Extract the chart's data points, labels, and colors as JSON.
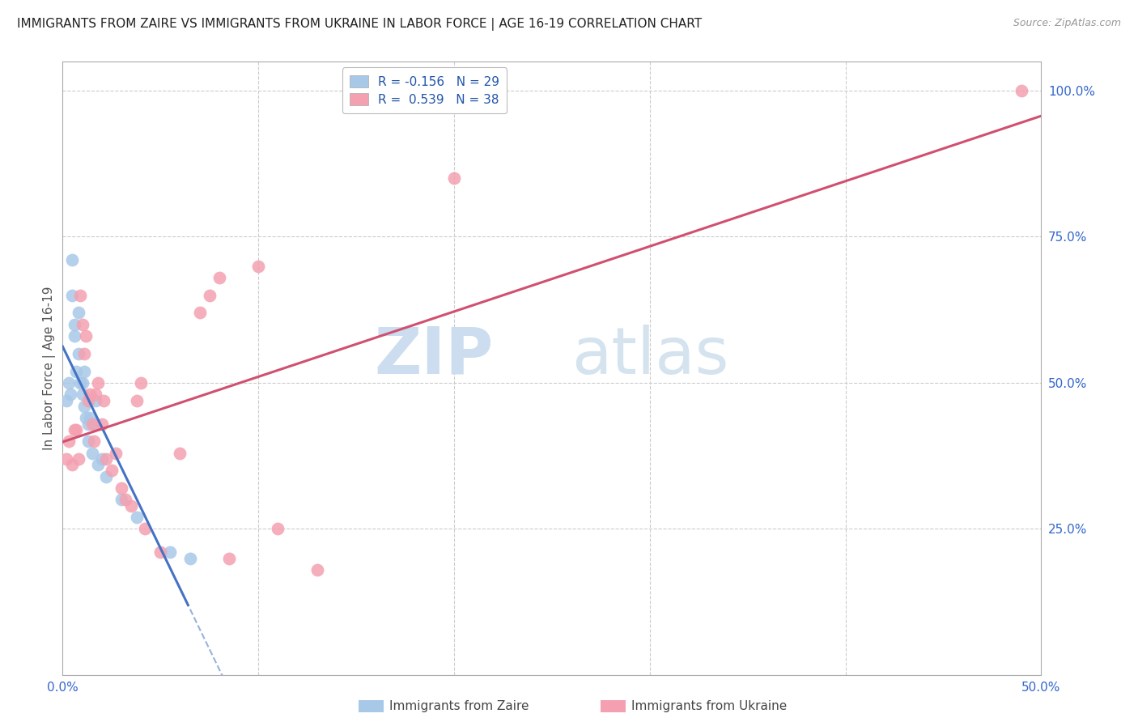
{
  "title": "IMMIGRANTS FROM ZAIRE VS IMMIGRANTS FROM UKRAINE IN LABOR FORCE | AGE 16-19 CORRELATION CHART",
  "source_text": "Source: ZipAtlas.com",
  "ylabel": "In Labor Force | Age 16-19",
  "xlim": [
    0.0,
    0.5
  ],
  "ylim": [
    0.0,
    1.05
  ],
  "xtick_positions": [
    0.0,
    0.1,
    0.2,
    0.3,
    0.4,
    0.5
  ],
  "xticklabels": [
    "0.0%",
    "",
    "",
    "",
    "",
    "50.0%"
  ],
  "ytick_positions": [
    0.0,
    0.25,
    0.5,
    0.75,
    1.0
  ],
  "yticklabels_right": [
    "",
    "25.0%",
    "50.0%",
    "75.0%",
    "100.0%"
  ],
  "zaire_x": [
    0.002,
    0.003,
    0.004,
    0.005,
    0.005,
    0.006,
    0.006,
    0.007,
    0.008,
    0.008,
    0.009,
    0.01,
    0.01,
    0.011,
    0.011,
    0.012,
    0.013,
    0.013,
    0.014,
    0.015,
    0.016,
    0.017,
    0.018,
    0.02,
    0.022,
    0.03,
    0.038,
    0.055,
    0.065
  ],
  "zaire_y": [
    0.47,
    0.5,
    0.48,
    0.71,
    0.65,
    0.6,
    0.58,
    0.52,
    0.62,
    0.55,
    0.5,
    0.48,
    0.5,
    0.52,
    0.46,
    0.44,
    0.4,
    0.43,
    0.44,
    0.38,
    0.43,
    0.47,
    0.36,
    0.37,
    0.34,
    0.3,
    0.27,
    0.21,
    0.2
  ],
  "ukraine_x": [
    0.002,
    0.003,
    0.005,
    0.006,
    0.007,
    0.008,
    0.009,
    0.01,
    0.011,
    0.012,
    0.013,
    0.014,
    0.015,
    0.016,
    0.017,
    0.018,
    0.02,
    0.021,
    0.022,
    0.025,
    0.027,
    0.03,
    0.032,
    0.035,
    0.038,
    0.04,
    0.042,
    0.05,
    0.06,
    0.07,
    0.075,
    0.08,
    0.085,
    0.1,
    0.11,
    0.13,
    0.2,
    0.49
  ],
  "ukraine_y": [
    0.37,
    0.4,
    0.36,
    0.42,
    0.42,
    0.37,
    0.65,
    0.6,
    0.55,
    0.58,
    0.47,
    0.48,
    0.43,
    0.4,
    0.48,
    0.5,
    0.43,
    0.47,
    0.37,
    0.35,
    0.38,
    0.32,
    0.3,
    0.29,
    0.47,
    0.5,
    0.25,
    0.21,
    0.38,
    0.62,
    0.65,
    0.68,
    0.2,
    0.7,
    0.25,
    0.18,
    0.85,
    1.0
  ],
  "zaire_color": "#a8c8e8",
  "ukraine_color": "#f4a0b0",
  "zaire_line_color": "#4472c4",
  "ukraine_line_color": "#d05070",
  "background_color": "#ffffff",
  "grid_color": "#cccccc",
  "title_fontsize": 11,
  "axis_fontsize": 11
}
